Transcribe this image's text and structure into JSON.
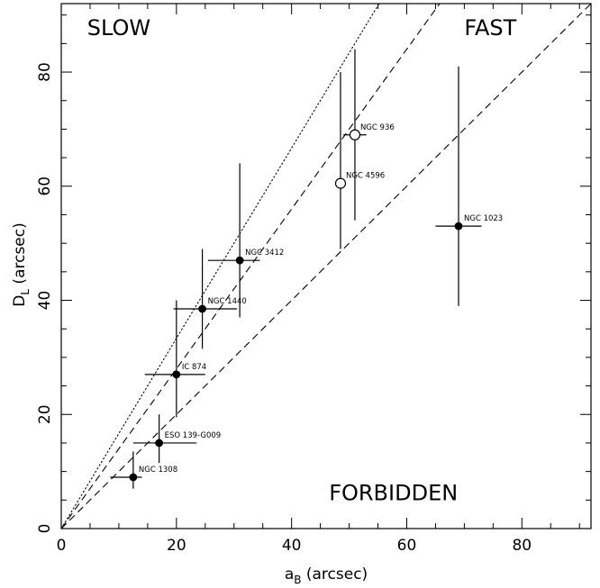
{
  "chart_data": {
    "type": "scatter",
    "xlabel": {
      "main": "a",
      "sub": "B",
      "rest": " (arcsec)"
    },
    "ylabel": {
      "main": "D",
      "sub": "L",
      "rest": " (arcsec)"
    },
    "xlim": [
      0,
      92
    ],
    "ylim": [
      0,
      92
    ],
    "x_ticks": [
      0,
      20,
      40,
      60,
      80
    ],
    "y_ticks": [
      0,
      20,
      40,
      60,
      80
    ],
    "grid": false,
    "regions": [
      {
        "text": "SLOW",
        "x": 4.5,
        "y": 86.5
      },
      {
        "text": "FAST",
        "x": 70,
        "y": 86.5
      },
      {
        "text": "FORBIDDEN",
        "x": 46.5,
        "y": 5
      }
    ],
    "reference_lines": [
      {
        "style": "dotted",
        "slope": 1.667
      },
      {
        "style": "dashed",
        "slope": 1.4
      },
      {
        "style": "dashed",
        "slope": 1.0
      }
    ],
    "points": [
      {
        "name": "NGC 1308",
        "x": 12.5,
        "y": 9,
        "xerr": [
          8.5,
          14
        ],
        "yerr": [
          7,
          13.5
        ],
        "filled": true
      },
      {
        "name": "ESO 139-G009",
        "x": 17,
        "y": 15,
        "xerr": [
          12.5,
          23.5
        ],
        "yerr": [
          11.5,
          20
        ],
        "filled": true
      },
      {
        "name": "IC 874",
        "x": 20,
        "y": 27,
        "xerr": [
          14.5,
          25
        ],
        "yerr": [
          19.5,
          40
        ],
        "filled": true
      },
      {
        "name": "NGC 1440",
        "x": 24.5,
        "y": 38.5,
        "xerr": [
          19.5,
          30.5
        ],
        "yerr": [
          31.5,
          49
        ],
        "filled": true
      },
      {
        "name": "NGC 3412",
        "x": 31,
        "y": 47,
        "xerr": [
          25.5,
          34.5
        ],
        "yerr": [
          37,
          64
        ],
        "filled": true
      },
      {
        "name": "NGC 936",
        "x": 51,
        "y": 69,
        "xerr": [
          49,
          53
        ],
        "yerr": [
          54,
          84
        ],
        "filled": false
      },
      {
        "name": "NGC 4596",
        "x": 48.5,
        "y": 60.5,
        "xerr": [
          48.5,
          48.5
        ],
        "yerr": [
          49,
          80
        ],
        "filled": false
      },
      {
        "name": "NGC 1023",
        "x": 69,
        "y": 53,
        "xerr": [
          65,
          73
        ],
        "yerr": [
          39,
          81
        ],
        "filled": true
      }
    ]
  }
}
